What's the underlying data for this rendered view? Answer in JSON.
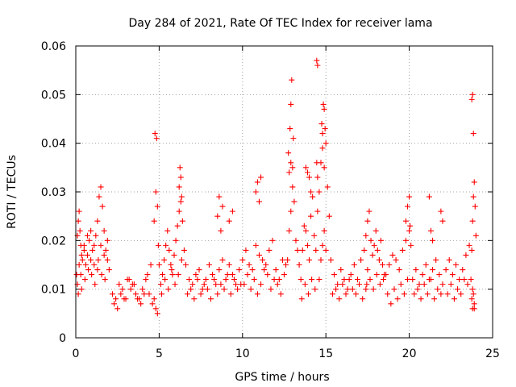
{
  "chart_data": {
    "type": "scatter",
    "title": "Day 284 of 2021, Rate Of TEC Index for receiver lama",
    "xlabel": "GPS time / hours",
    "ylabel": "ROTI / TECUs",
    "xlim": [
      0,
      25
    ],
    "ylim": [
      0,
      0.06
    ],
    "xticks": [
      "0",
      "5",
      "10",
      "15",
      "20",
      "25"
    ],
    "yticks": [
      "0",
      "0.01",
      "0.02",
      "0.03",
      "0.04",
      "0.05",
      "0.06"
    ],
    "grid": true,
    "marker": "+",
    "color": "#ff0000",
    "series": [
      {
        "x": [
          0.05,
          0.1,
          0.15,
          0.2,
          0.25,
          0.3,
          0.35,
          0.4,
          0.5,
          0.6,
          0.7,
          0.8,
          0.9,
          1.0,
          1.1,
          1.2,
          1.3,
          1.4,
          1.5,
          1.6,
          1.7,
          1.8,
          1.9,
          2.0,
          0.1,
          0.2,
          0.3,
          0.5,
          0.7,
          0.9,
          1.1,
          1.3,
          1.5,
          1.7,
          1.9,
          0.15,
          0.35,
          0.55,
          0.75,
          0.95,
          1.15,
          1.35,
          1.55,
          1.75,
          2.2,
          2.4,
          2.6,
          2.8,
          3.0,
          3.2,
          3.4,
          3.6,
          3.8,
          4.0,
          4.2,
          4.4,
          4.6,
          4.8,
          2.3,
          2.5,
          2.7,
          2.9,
          3.1,
          3.3,
          3.5,
          3.7,
          3.9,
          4.1,
          4.3,
          4.5,
          4.7,
          4.9,
          4.7,
          4.8,
          4.75,
          4.85,
          4.9,
          4.95,
          5.0,
          5.1,
          5.2,
          5.3,
          5.4,
          5.5,
          5.6,
          5.7,
          5.8,
          5.9,
          6.0,
          6.1,
          6.2,
          6.3,
          6.4,
          6.5,
          5.15,
          5.35,
          5.55,
          5.75,
          5.95,
          6.15,
          6.35,
          6.2,
          6.25,
          6.3,
          6.35,
          6.6,
          6.8,
          7.0,
          7.2,
          7.4,
          7.6,
          7.8,
          8.0,
          8.2,
          8.4,
          8.6,
          8.8,
          9.0,
          9.2,
          9.4,
          9.6,
          9.8,
          6.7,
          6.9,
          7.1,
          7.3,
          7.5,
          7.7,
          7.9,
          8.1,
          8.3,
          8.5,
          8.7,
          8.9,
          9.1,
          9.3,
          9.5,
          9.7,
          9.9,
          8.5,
          8.6,
          8.7,
          8.8,
          9.2,
          9.4,
          10.0,
          10.2,
          10.4,
          10.6,
          10.8,
          11.0,
          11.2,
          11.4,
          11.6,
          11.8,
          12.0,
          12.2,
          12.4,
          12.6,
          10.1,
          10.3,
          10.5,
          10.7,
          10.9,
          11.1,
          11.3,
          11.5,
          11.7,
          11.9,
          12.1,
          12.3,
          12.5,
          10.8,
          10.9,
          11.0,
          11.1,
          12.7,
          12.8,
          12.9,
          13.0,
          13.1,
          13.2,
          13.3,
          13.4,
          12.75,
          12.85,
          12.9,
          12.95,
          13.05,
          12.8,
          12.9,
          13.0,
          13.5,
          13.6,
          13.7,
          13.8,
          13.9,
          14.0,
          14.1,
          14.2,
          14.3,
          14.4,
          13.55,
          13.75,
          13.95,
          14.15,
          14.35,
          13.8,
          13.9,
          14.0,
          14.1,
          14.45,
          14.5,
          14.45,
          14.5,
          14.5,
          14.6,
          14.7,
          14.8,
          14.9,
          15.0,
          15.1,
          15.2,
          14.6,
          14.7,
          14.8,
          14.9,
          15.0,
          14.75,
          14.85,
          14.95,
          14.8,
          14.9,
          15.3,
          15.5,
          15.7,
          15.9,
          16.1,
          16.3,
          16.5,
          16.7,
          16.9,
          17.1,
          17.3,
          17.5,
          15.4,
          15.6,
          15.8,
          16.0,
          16.2,
          16.4,
          16.6,
          16.8,
          17.0,
          17.2,
          17.4,
          17.4,
          17.5,
          17.6,
          17.7,
          17.8,
          17.9,
          18.0,
          18.1,
          18.2,
          18.3,
          18.4,
          18.5,
          17.45,
          17.65,
          17.85,
          18.05,
          18.25,
          18.45,
          18.6,
          18.8,
          19.0,
          19.2,
          19.4,
          19.6,
          19.8,
          20.0,
          18.7,
          18.9,
          19.1,
          19.3,
          19.5,
          19.7,
          19.9,
          19.8,
          19.9,
          20.0,
          20.05,
          20.1,
          20.2,
          20.4,
          20.6,
          20.8,
          21.0,
          21.2,
          21.4,
          21.6,
          21.8,
          22.0,
          20.3,
          20.5,
          20.7,
          20.9,
          21.1,
          21.3,
          21.5,
          21.7,
          21.9,
          21.2,
          21.3,
          21.4,
          21.9,
          22.0,
          22.2,
          22.4,
          22.6,
          22.8,
          23.0,
          23.2,
          23.4,
          23.6,
          22.3,
          22.5,
          22.7,
          22.9,
          23.1,
          23.3,
          23.5,
          23.7,
          23.75,
          23.8,
          23.85,
          23.9,
          23.95,
          24.0,
          23.75,
          23.8,
          23.85,
          23.9,
          23.8,
          23.75,
          23.85,
          23.9,
          23.8
        ],
        "y": [
          0.013,
          0.021,
          0.024,
          0.026,
          0.022,
          0.019,
          0.017,
          0.016,
          0.018,
          0.015,
          0.017,
          0.02,
          0.022,
          0.018,
          0.019,
          0.021,
          0.024,
          0.029,
          0.031,
          0.027,
          0.022,
          0.018,
          0.016,
          0.014,
          0.011,
          0.015,
          0.013,
          0.019,
          0.021,
          0.016,
          0.015,
          0.014,
          0.019,
          0.017,
          0.02,
          0.009,
          0.01,
          0.012,
          0.014,
          0.013,
          0.011,
          0.016,
          0.013,
          0.012,
          0.009,
          0.008,
          0.011,
          0.01,
          0.008,
          0.012,
          0.011,
          0.009,
          0.008,
          0.01,
          0.012,
          0.009,
          0.007,
          0.006,
          0.007,
          0.006,
          0.009,
          0.008,
          0.012,
          0.01,
          0.011,
          0.008,
          0.007,
          0.009,
          0.013,
          0.015,
          0.008,
          0.005,
          0.024,
          0.03,
          0.042,
          0.041,
          0.027,
          0.019,
          0.015,
          0.011,
          0.013,
          0.016,
          0.019,
          0.022,
          0.018,
          0.015,
          0.013,
          0.017,
          0.02,
          0.023,
          0.026,
          0.028,
          0.024,
          0.018,
          0.009,
          0.012,
          0.01,
          0.014,
          0.011,
          0.013,
          0.016,
          0.031,
          0.035,
          0.033,
          0.029,
          0.015,
          0.012,
          0.011,
          0.013,
          0.014,
          0.01,
          0.012,
          0.015,
          0.013,
          0.011,
          0.014,
          0.016,
          0.012,
          0.015,
          0.013,
          0.011,
          0.014,
          0.009,
          0.01,
          0.008,
          0.012,
          0.009,
          0.011,
          0.01,
          0.008,
          0.012,
          0.009,
          0.011,
          0.01,
          0.013,
          0.009,
          0.012,
          0.01,
          0.011,
          0.025,
          0.029,
          0.022,
          0.027,
          0.024,
          0.026,
          0.016,
          0.018,
          0.015,
          0.014,
          0.019,
          0.017,
          0.016,
          0.015,
          0.018,
          0.02,
          0.014,
          0.012,
          0.016,
          0.015,
          0.011,
          0.013,
          0.01,
          0.012,
          0.009,
          0.011,
          0.014,
          0.013,
          0.01,
          0.012,
          0.011,
          0.009,
          0.013,
          0.03,
          0.032,
          0.028,
          0.033,
          0.016,
          0.022,
          0.026,
          0.031,
          0.028,
          0.02,
          0.018,
          0.015,
          0.038,
          0.043,
          0.048,
          0.053,
          0.041,
          0.034,
          0.036,
          0.035,
          0.012,
          0.018,
          0.023,
          0.022,
          0.019,
          0.016,
          0.025,
          0.029,
          0.021,
          0.018,
          0.008,
          0.011,
          0.009,
          0.012,
          0.01,
          0.035,
          0.034,
          0.033,
          0.03,
          0.057,
          0.056,
          0.036,
          0.033,
          0.026,
          0.03,
          0.036,
          0.042,
          0.047,
          0.04,
          0.031,
          0.025,
          0.012,
          0.016,
          0.019,
          0.022,
          0.018,
          0.044,
          0.048,
          0.043,
          0.039,
          0.035,
          0.016,
          0.013,
          0.011,
          0.014,
          0.012,
          0.01,
          0.013,
          0.015,
          0.012,
          0.016,
          0.018,
          0.014,
          0.009,
          0.01,
          0.008,
          0.011,
          0.009,
          0.012,
          0.01,
          0.009,
          0.011,
          0.008,
          0.01,
          0.021,
          0.024,
          0.026,
          0.02,
          0.017,
          0.019,
          0.022,
          0.018,
          0.016,
          0.02,
          0.015,
          0.013,
          0.011,
          0.012,
          0.01,
          0.013,
          0.011,
          0.012,
          0.013,
          0.015,
          0.017,
          0.016,
          0.014,
          0.018,
          0.02,
          0.022,
          0.009,
          0.007,
          0.01,
          0.008,
          0.011,
          0.009,
          0.012,
          0.024,
          0.027,
          0.029,
          0.023,
          0.019,
          0.012,
          0.014,
          0.011,
          0.013,
          0.015,
          0.012,
          0.014,
          0.016,
          0.013,
          0.011,
          0.009,
          0.01,
          0.008,
          0.011,
          0.009,
          0.012,
          0.008,
          0.01,
          0.009,
          0.029,
          0.022,
          0.02,
          0.026,
          0.024,
          0.014,
          0.016,
          0.013,
          0.015,
          0.012,
          0.014,
          0.017,
          0.019,
          0.009,
          0.011,
          0.008,
          0.01,
          0.009,
          0.012,
          0.011,
          0.012,
          0.049,
          0.05,
          0.042,
          0.032,
          0.027,
          0.021,
          0.018,
          0.024,
          0.029,
          0.007,
          0.006,
          0.008,
          0.009,
          0.006,
          0.01
        ]
      }
    ]
  }
}
